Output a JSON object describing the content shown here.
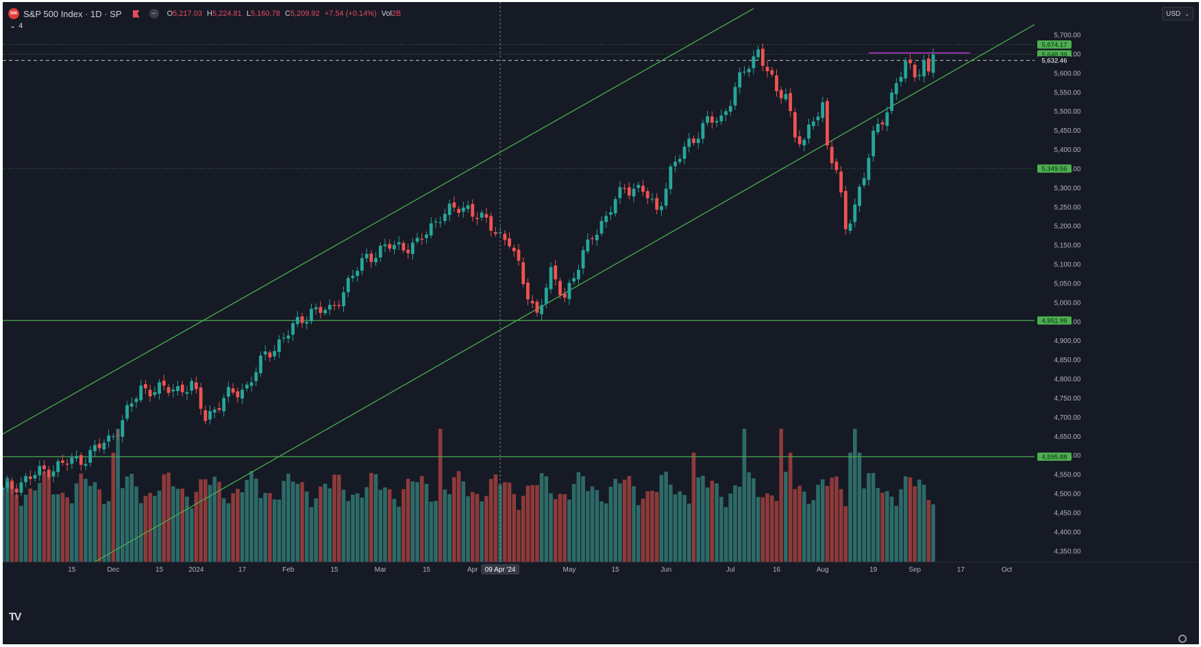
{
  "header": {
    "symbol_badge": "500",
    "title": "S&P 500 Index · 1D · SP",
    "open_label": "O",
    "open": "5,217.03",
    "high_label": "H",
    "high": "5,224.81",
    "low_label": "L",
    "low": "5,160.78",
    "close_label": "C",
    "close": "5,209.92",
    "change": "+7.54 (+0.14%)",
    "vol_label": "Vol",
    "vol": "2B",
    "indicator_count": "4"
  },
  "currency": "USD",
  "logo": "TV",
  "colors": {
    "background": "#161a25",
    "up": "#26a69a",
    "down": "#ef5350",
    "vol_up": "#2d6a68",
    "vol_down": "#8e3a3a",
    "trend_line": "#4caf50",
    "magenta": "#e040fb",
    "axis_text": "#b2b5be",
    "label_green": "#4caf50"
  },
  "chart_data": {
    "type": "candlestick",
    "title": "S&P 500 Index · 1D · SP",
    "y_axis_ticks": [
      "5,700.00",
      "5,650.00",
      "5,600.00",
      "5,550.00",
      "5,500.00",
      "5,450.00",
      "5,400.00",
      "5,350.00",
      "5,300.00",
      "5,250.00",
      "5,200.00",
      "5,150.00",
      "5,100.00",
      "5,050.00",
      "5,000.00",
      "4,950.00",
      "4,900.00",
      "4,850.00",
      "4,800.00",
      "4,750.00",
      "4,700.00",
      "4,650.00",
      "4,600.00",
      "4,550.00",
      "4,500.00",
      "4,450.00",
      "4,400.00",
      "4,350.00"
    ],
    "y_ticks_values": [
      5700,
      5650,
      5600,
      5550,
      5500,
      5450,
      5400,
      5350,
      5300,
      5250,
      5200,
      5150,
      5100,
      5050,
      5000,
      4950,
      4900,
      4850,
      4800,
      4750,
      4700,
      4650,
      4600,
      4550,
      4500,
      4450,
      4400,
      4350
    ],
    "y_range": [
      4320,
      5735
    ],
    "x_axis_labels": [
      "15",
      "Dec",
      "15",
      "2024",
      "17",
      "Feb",
      "15",
      "Mar",
      "15",
      "Apr",
      "09 Apr '24",
      "May",
      "15",
      "Jun",
      "Jul",
      "16",
      "Aug",
      "19",
      "Sep",
      "17",
      "Oct"
    ],
    "x_label_values": [
      15,
      24,
      34,
      42,
      52,
      62,
      72,
      82,
      92,
      102,
      108,
      123,
      133,
      144,
      158,
      168,
      178,
      189,
      198,
      208,
      218
    ],
    "x_range": [
      0,
      224
    ],
    "crosshair": {
      "x": 108,
      "date": "09 Apr '24"
    },
    "horizontal_levels": [
      {
        "value": 5674.17,
        "label": "5,674.17",
        "style": "dotted"
      },
      {
        "value": 5648.39,
        "label": "5,648.39",
        "style": "dotted"
      },
      {
        "value": 5632.46,
        "label": "5,632.46",
        "style": "dashed-white"
      },
      {
        "value": 5349.56,
        "label": "5,349.56",
        "style": "dotted"
      },
      {
        "value": 4951.99,
        "label": "4,951.99",
        "style": "solid"
      },
      {
        "value": 4595.88,
        "label": "4,595.88",
        "style": "solid"
      }
    ],
    "magenta_level": {
      "value": 5652,
      "from_x": 188,
      "to_x": 210
    },
    "channel_lines": [
      {
        "name": "upper",
        "points": [
          [
            0,
            4655
          ],
          [
            163,
            5768
          ]
        ]
      },
      {
        "name": "lower",
        "points": [
          [
            17,
            4300
          ],
          [
            226,
            5740
          ]
        ]
      }
    ],
    "key_points": [
      {
        "x": 0,
        "close": 4505
      },
      {
        "x": 9,
        "close": 4560
      },
      {
        "x": 18,
        "close": 4595
      },
      {
        "x": 23,
        "close": 4640
      },
      {
        "x": 26,
        "close": 4690
      },
      {
        "x": 30,
        "close": 4775
      },
      {
        "x": 35,
        "close": 4770
      },
      {
        "x": 41,
        "close": 4780
      },
      {
        "x": 44,
        "close": 4700
      },
      {
        "x": 49,
        "close": 4755
      },
      {
        "x": 53,
        "close": 4780
      },
      {
        "x": 57,
        "close": 4860
      },
      {
        "x": 62,
        "close": 4920
      },
      {
        "x": 67,
        "close": 4980
      },
      {
        "x": 71,
        "close": 4975
      },
      {
        "x": 75,
        "close": 5050
      },
      {
        "x": 79,
        "close": 5120
      },
      {
        "x": 84,
        "close": 5145
      },
      {
        "x": 90,
        "close": 5150
      },
      {
        "x": 95,
        "close": 5230
      },
      {
        "x": 101,
        "close": 5250
      },
      {
        "x": 105,
        "close": 5205
      },
      {
        "x": 110,
        "close": 5160
      },
      {
        "x": 113,
        "close": 5050
      },
      {
        "x": 116,
        "close": 4970
      },
      {
        "x": 119,
        "close": 5070
      },
      {
        "x": 122,
        "close": 5020
      },
      {
        "x": 125,
        "close": 5090
      },
      {
        "x": 128,
        "close": 5180
      },
      {
        "x": 131,
        "close": 5220
      },
      {
        "x": 135,
        "close": 5305
      },
      {
        "x": 139,
        "close": 5290
      },
      {
        "x": 142,
        "close": 5240
      },
      {
        "x": 145,
        "close": 5340
      },
      {
        "x": 149,
        "close": 5420
      },
      {
        "x": 153,
        "close": 5470
      },
      {
        "x": 156,
        "close": 5480
      },
      {
        "x": 159,
        "close": 5560
      },
      {
        "x": 162,
        "close": 5620
      },
      {
        "x": 164,
        "close": 5660
      },
      {
        "x": 166,
        "close": 5610
      },
      {
        "x": 168,
        "close": 5540
      },
      {
        "x": 170,
        "close": 5550
      },
      {
        "x": 172,
        "close": 5440
      },
      {
        "x": 174,
        "close": 5410
      },
      {
        "x": 176,
        "close": 5480
      },
      {
        "x": 178,
        "close": 5520
      },
      {
        "x": 179,
        "close": 5410
      },
      {
        "x": 181,
        "close": 5340
      },
      {
        "x": 183,
        "close": 5190
      },
      {
        "x": 185,
        "close": 5260
      },
      {
        "x": 187,
        "close": 5330
      },
      {
        "x": 189,
        "close": 5430
      },
      {
        "x": 192,
        "close": 5510
      },
      {
        "x": 194,
        "close": 5570
      },
      {
        "x": 196,
        "close": 5620
      },
      {
        "x": 198,
        "close": 5600
      },
      {
        "x": 200,
        "close": 5630
      },
      {
        "x": 201,
        "close": 5592
      },
      {
        "x": 202,
        "close": 5648
      }
    ]
  }
}
